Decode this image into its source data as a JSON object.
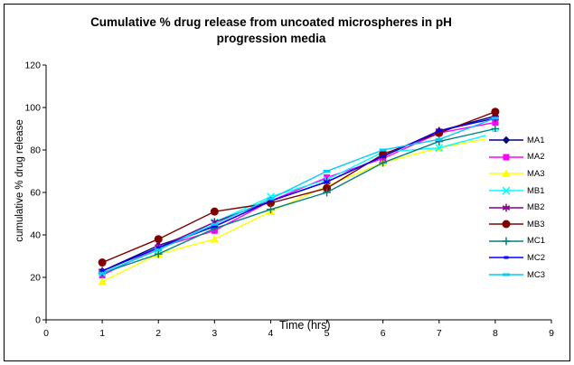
{
  "chart_data": {
    "type": "line",
    "title": "Cumulative % drug release from uncoated microspheres in pH progression media",
    "title_lines": [
      "Cumulative % drug release from uncoated microspheres in pH",
      "progression media"
    ],
    "xlabel": "Time (hrs)",
    "ylabel": "cumulative % drug release",
    "x": [
      1,
      2,
      3,
      4,
      5,
      6,
      7,
      8
    ],
    "xlim": [
      0,
      9
    ],
    "ylim": [
      0,
      120
    ],
    "x_ticks": [
      0,
      1,
      2,
      3,
      4,
      5,
      6,
      7,
      8,
      9
    ],
    "y_ticks": [
      0,
      20,
      40,
      60,
      80,
      100,
      120
    ],
    "grid": false,
    "legend_position": "right",
    "plot_bg": "#ffffff",
    "axis_color": "#000000",
    "series": [
      {
        "name": "MA1",
        "color": "#000080",
        "marker": "diamond",
        "values": [
          23,
          35,
          44,
          56,
          65,
          77,
          89,
          96
        ]
      },
      {
        "name": "MA2",
        "color": "#FF00FF",
        "marker": "square",
        "values": [
          21,
          34,
          42,
          56,
          67,
          76,
          88,
          93
        ]
      },
      {
        "name": "MA3",
        "color": "#FFFF00",
        "marker": "triangle",
        "values": [
          18,
          31,
          38,
          51,
          63,
          74,
          81,
          86
        ]
      },
      {
        "name": "MB1",
        "color": "#00FFFF",
        "marker": "x",
        "values": [
          22,
          33,
          46,
          58,
          66,
          79,
          81,
          88
        ]
      },
      {
        "name": "MB2",
        "color": "#800080",
        "marker": "asterisk",
        "values": [
          23,
          34,
          46,
          56,
          65,
          77,
          89,
          95
        ]
      },
      {
        "name": "MB3",
        "color": "#800000",
        "marker": "circle",
        "values": [
          27,
          38,
          51,
          55,
          62,
          78,
          88,
          98
        ]
      },
      {
        "name": "MC1",
        "color": "#008080",
        "marker": "plus",
        "values": [
          22,
          31,
          43,
          52,
          60,
          74,
          84,
          90
        ]
      },
      {
        "name": "MC2",
        "color": "#0000FF",
        "marker": "dash-short",
        "values": [
          23,
          34,
          44,
          56,
          65,
          77,
          89,
          95
        ]
      },
      {
        "name": "MC3",
        "color": "#00CCFF",
        "marker": "dash",
        "values": [
          22,
          33,
          45,
          57,
          70,
          80,
          85,
          95
        ]
      }
    ]
  }
}
